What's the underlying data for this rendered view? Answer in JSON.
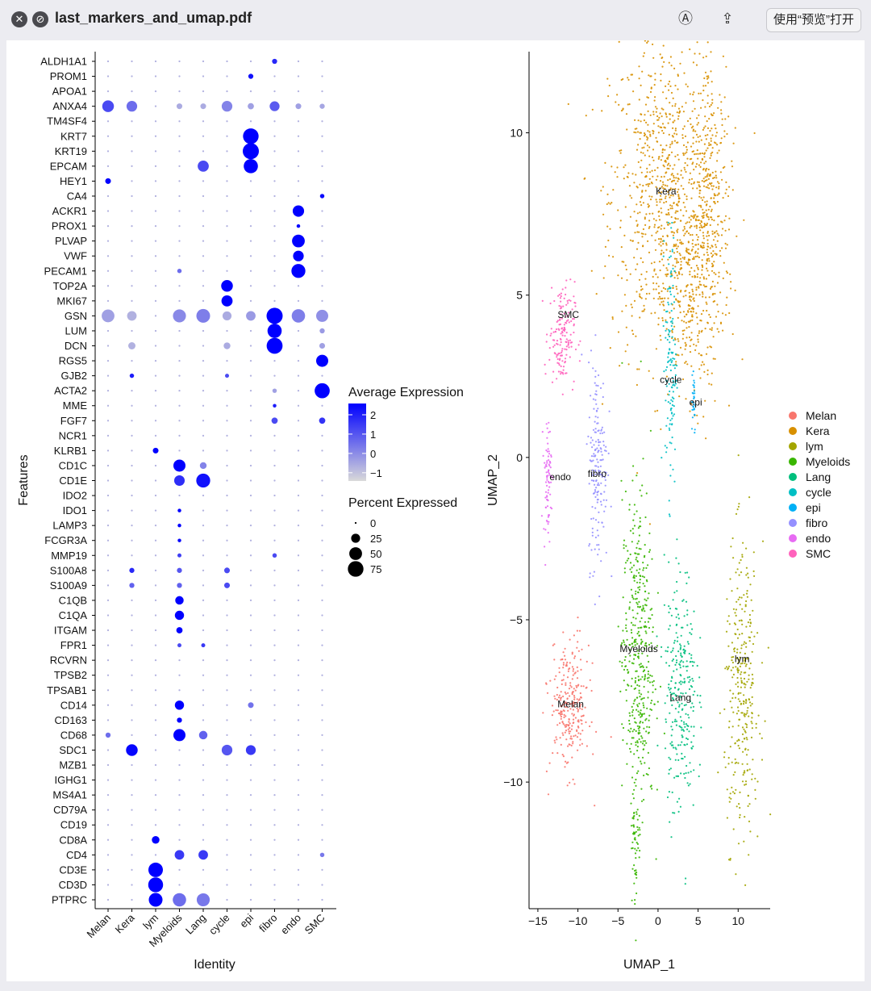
{
  "window": {
    "title": "last_markers_and_umap.pdf",
    "open_with_label": "使用“预览”打开",
    "icons": [
      "close-icon",
      "block-icon",
      "markup-icon",
      "share-icon"
    ]
  },
  "dotplot": {
    "features": [
      "ALDH1A1",
      "PROM1",
      "APOA1",
      "ANXA4",
      "TM4SF4",
      "KRT7",
      "KRT19",
      "EPCAM",
      "HEY1",
      "CA4",
      "ACKR1",
      "PROX1",
      "PLVAP",
      "VWF",
      "PECAM1",
      "TOP2A",
      "MKI67",
      "GSN",
      "LUM",
      "DCN",
      "RGS5",
      "GJB2",
      "ACTA2",
      "MME",
      "FGF7",
      "NCR1",
      "KLRB1",
      "CD1C",
      "CD1E",
      "IDO2",
      "IDO1",
      "LAMP3",
      "FCGR3A",
      "MMP19",
      "S100A8",
      "S100A9",
      "C1QB",
      "C1QA",
      "ITGAM",
      "FPR1",
      "RCVRN",
      "TPSB2",
      "TPSAB1",
      "CD14",
      "CD163",
      "CD68",
      "SDC1",
      "MZB1",
      "IGHG1",
      "MS4A1",
      "CD79A",
      "CD19",
      "CD8A",
      "CD4",
      "CD3E",
      "CD3D",
      "PTPRC"
    ],
    "identities": [
      "Melan",
      "Kera",
      "lym",
      "Myeloids",
      "Lang",
      "cycle",
      "epi",
      "fibro",
      "endo",
      "SMC"
    ],
    "xlabel": "Identity",
    "ylabel": "Features",
    "legend_expr_title": "Average Expression",
    "legend_expr_ticks": [
      "2",
      "1",
      "0",
      "−1"
    ],
    "legend_expr_values": [
      2,
      1,
      0,
      -1
    ],
    "legend_pct_title": "Percent Expressed",
    "legend_pct_labels": [
      "0",
      "25",
      "50",
      "75"
    ],
    "legend_pct_values": [
      0,
      25,
      50,
      75
    ],
    "color_low": "#d9d9d9",
    "color_high": "#0000ff",
    "highlights": [
      {
        "feature": "ALDH1A1",
        "identity": "fibro",
        "pct": 8,
        "expr": 1.8
      },
      {
        "feature": "PROM1",
        "identity": "epi",
        "pct": 8,
        "expr": 2.2
      },
      {
        "feature": "ANXA4",
        "identity": "Melan",
        "pct": 42,
        "expr": 1.2
      },
      {
        "feature": "ANXA4",
        "identity": "Kera",
        "pct": 35,
        "expr": 0.6
      },
      {
        "feature": "ANXA4",
        "identity": "cycle",
        "pct": 35,
        "expr": 0.2
      },
      {
        "feature": "ANXA4",
        "identity": "fibro",
        "pct": 30,
        "expr": 0.9
      },
      {
        "feature": "ANXA4",
        "identity": "Myeloids",
        "pct": 10,
        "expr": -0.5
      },
      {
        "feature": "ANXA4",
        "identity": "Lang",
        "pct": 10,
        "expr": -0.5
      },
      {
        "feature": "ANXA4",
        "identity": "epi",
        "pct": 12,
        "expr": -0.3
      },
      {
        "feature": "ANXA4",
        "identity": "endo",
        "pct": 10,
        "expr": -0.3
      },
      {
        "feature": "ANXA4",
        "identity": "SMC",
        "pct": 8,
        "expr": -0.4
      },
      {
        "feature": "KRT7",
        "identity": "epi",
        "pct": 75,
        "expr": 2.5
      },
      {
        "feature": "KRT19",
        "identity": "epi",
        "pct": 80,
        "expr": 2.5
      },
      {
        "feature": "EPCAM",
        "identity": "epi",
        "pct": 62,
        "expr": 2.5
      },
      {
        "feature": "EPCAM",
        "identity": "Lang",
        "pct": 38,
        "expr": 1.2
      },
      {
        "feature": "HEY1",
        "identity": "Melan",
        "pct": 10,
        "expr": 2.5
      },
      {
        "feature": "CA4",
        "identity": "SMC",
        "pct": 6,
        "expr": 2.3
      },
      {
        "feature": "ACKR1",
        "identity": "endo",
        "pct": 40,
        "expr": 2.5
      },
      {
        "feature": "PROX1",
        "identity": "endo",
        "pct": 4,
        "expr": 2.5
      },
      {
        "feature": "PLVAP",
        "identity": "endo",
        "pct": 50,
        "expr": 2.5
      },
      {
        "feature": "VWF",
        "identity": "endo",
        "pct": 35,
        "expr": 2.5
      },
      {
        "feature": "PECAM1",
        "identity": "endo",
        "pct": 60,
        "expr": 2.5
      },
      {
        "feature": "PECAM1",
        "identity": "Myeloids",
        "pct": 6,
        "expr": 0.6
      },
      {
        "feature": "TOP2A",
        "identity": "cycle",
        "pct": 42,
        "expr": 2.5
      },
      {
        "feature": "MKI67",
        "identity": "cycle",
        "pct": 38,
        "expr": 2.5
      },
      {
        "feature": "GSN",
        "identity": "Melan",
        "pct": 50,
        "expr": -0.3
      },
      {
        "feature": "GSN",
        "identity": "Kera",
        "pct": 28,
        "expr": -0.6
      },
      {
        "feature": "GSN",
        "identity": "Myeloids",
        "pct": 52,
        "expr": 0.1
      },
      {
        "feature": "GSN",
        "identity": "Lang",
        "pct": 58,
        "expr": 0.3
      },
      {
        "feature": "GSN",
        "identity": "cycle",
        "pct": 25,
        "expr": -0.5
      },
      {
        "feature": "GSN",
        "identity": "epi",
        "pct": 28,
        "expr": -0.2
      },
      {
        "feature": "GSN",
        "identity": "fibro",
        "pct": 80,
        "expr": 2.5
      },
      {
        "feature": "GSN",
        "identity": "endo",
        "pct": 55,
        "expr": 0.3
      },
      {
        "feature": "GSN",
        "identity": "SMC",
        "pct": 45,
        "expr": 0.0
      },
      {
        "feature": "LUM",
        "identity": "fibro",
        "pct": 62,
        "expr": 2.5
      },
      {
        "feature": "LUM",
        "identity": "SMC",
        "pct": 8,
        "expr": -0.2
      },
      {
        "feature": "DCN",
        "identity": "fibro",
        "pct": 78,
        "expr": 2.5
      },
      {
        "feature": "DCN",
        "identity": "Kera",
        "pct": 16,
        "expr": -0.6
      },
      {
        "feature": "DCN",
        "identity": "cycle",
        "pct": 14,
        "expr": -0.5
      },
      {
        "feature": "DCN",
        "identity": "SMC",
        "pct": 10,
        "expr": -0.3
      },
      {
        "feature": "RGS5",
        "identity": "SMC",
        "pct": 45,
        "expr": 2.5
      },
      {
        "feature": "GJB2",
        "identity": "Kera",
        "pct": 6,
        "expr": 2.0
      },
      {
        "feature": "GJB2",
        "identity": "cycle",
        "pct": 5,
        "expr": 1.2
      },
      {
        "feature": "ACTA2",
        "identity": "SMC",
        "pct": 70,
        "expr": 2.5
      },
      {
        "feature": "ACTA2",
        "identity": "fibro",
        "pct": 6,
        "expr": -0.3
      },
      {
        "feature": "MME",
        "identity": "fibro",
        "pct": 4,
        "expr": 2.0
      },
      {
        "feature": "FGF7",
        "identity": "fibro",
        "pct": 12,
        "expr": 1.2
      },
      {
        "feature": "FGF7",
        "identity": "SMC",
        "pct": 12,
        "expr": 1.6
      },
      {
        "feature": "KLRB1",
        "identity": "lym",
        "pct": 10,
        "expr": 2.5
      },
      {
        "feature": "CD1C",
        "identity": "Myeloids",
        "pct": 45,
        "expr": 2.5
      },
      {
        "feature": "CD1C",
        "identity": "Lang",
        "pct": 14,
        "expr": 0.2
      },
      {
        "feature": "CD1E",
        "identity": "Myeloids",
        "pct": 34,
        "expr": 1.7
      },
      {
        "feature": "CD1E",
        "identity": "Lang",
        "pct": 60,
        "expr": 2.2
      },
      {
        "feature": "IDO1",
        "identity": "Myeloids",
        "pct": 4,
        "expr": 2.5
      },
      {
        "feature": "LAMP3",
        "identity": "Myeloids",
        "pct": 4,
        "expr": 2.5
      },
      {
        "feature": "FCGR3A",
        "identity": "Myeloids",
        "pct": 4,
        "expr": 2.3
      },
      {
        "feature": "MMP19",
        "identity": "Myeloids",
        "pct": 5,
        "expr": 1.4
      },
      {
        "feature": "MMP19",
        "identity": "fibro",
        "pct": 6,
        "expr": 1.2
      },
      {
        "feature": "S100A8",
        "identity": "Kera",
        "pct": 8,
        "expr": 1.8
      },
      {
        "feature": "S100A8",
        "identity": "Myeloids",
        "pct": 8,
        "expr": 1.0
      },
      {
        "feature": "S100A8",
        "identity": "cycle",
        "pct": 10,
        "expr": 1.2
      },
      {
        "feature": "S100A9",
        "identity": "Kera",
        "pct": 8,
        "expr": 0.8
      },
      {
        "feature": "S100A9",
        "identity": "Myeloids",
        "pct": 8,
        "expr": 0.8
      },
      {
        "feature": "S100A9",
        "identity": "cycle",
        "pct": 10,
        "expr": 1.2
      },
      {
        "feature": "C1QB",
        "identity": "Myeloids",
        "pct": 22,
        "expr": 2.5
      },
      {
        "feature": "C1QA",
        "identity": "Myeloids",
        "pct": 26,
        "expr": 2.5
      },
      {
        "feature": "ITGAM",
        "identity": "Myeloids",
        "pct": 12,
        "expr": 2.5
      },
      {
        "feature": "FPR1",
        "identity": "Myeloids",
        "pct": 5,
        "expr": 1.2
      },
      {
        "feature": "FPR1",
        "identity": "Lang",
        "pct": 5,
        "expr": 1.5
      },
      {
        "feature": "CD14",
        "identity": "Myeloids",
        "pct": 26,
        "expr": 2.5
      },
      {
        "feature": "CD14",
        "identity": "epi",
        "pct": 10,
        "expr": 0.5
      },
      {
        "feature": "CD163",
        "identity": "Myeloids",
        "pct": 8,
        "expr": 2.5
      },
      {
        "feature": "CD68",
        "identity": "Myeloids",
        "pct": 45,
        "expr": 2.5
      },
      {
        "feature": "CD68",
        "identity": "Lang",
        "pct": 22,
        "expr": 0.8
      },
      {
        "feature": "CD68",
        "identity": "Melan",
        "pct": 8,
        "expr": 0.6
      },
      {
        "feature": "SDC1",
        "identity": "Kera",
        "pct": 42,
        "expr": 2.4
      },
      {
        "feature": "SDC1",
        "identity": "cycle",
        "pct": 35,
        "expr": 1.0
      },
      {
        "feature": "SDC1",
        "identity": "epi",
        "pct": 30,
        "expr": 1.5
      },
      {
        "feature": "CD8A",
        "identity": "lym",
        "pct": 18,
        "expr": 2.5
      },
      {
        "feature": "CD4",
        "identity": "Myeloids",
        "pct": 28,
        "expr": 1.5
      },
      {
        "feature": "CD4",
        "identity": "Lang",
        "pct": 28,
        "expr": 1.5
      },
      {
        "feature": "CD4",
        "identity": "SMC",
        "pct": 6,
        "expr": 0.4
      },
      {
        "feature": "CD3E",
        "identity": "lym",
        "pct": 65,
        "expr": 2.5
      },
      {
        "feature": "CD3D",
        "identity": "lym",
        "pct": 68,
        "expr": 2.5
      },
      {
        "feature": "PTPRC",
        "identity": "lym",
        "pct": 58,
        "expr": 2.5
      },
      {
        "feature": "PTPRC",
        "identity": "Myeloids",
        "pct": 55,
        "expr": 0.6
      },
      {
        "feature": "PTPRC",
        "identity": "Lang",
        "pct": 52,
        "expr": 0.4
      }
    ]
  },
  "umap": {
    "xlabel": "UMAP_1",
    "ylabel": "UMAP_2",
    "xticks": [
      -15,
      -10,
      -5,
      0,
      5,
      10
    ],
    "yticks": [
      10,
      5,
      0,
      -5,
      -10
    ],
    "xlim": [
      -16.2,
      14
    ],
    "ylim": [
      -13.9,
      12.5
    ],
    "legend": [
      {
        "name": "Melan",
        "color": "#F8766D"
      },
      {
        "name": "Kera",
        "color": "#D89000"
      },
      {
        "name": "lym",
        "color": "#A3A500"
      },
      {
        "name": "Myeloids",
        "color": "#39B600"
      },
      {
        "name": "Lang",
        "color": "#00BF7D"
      },
      {
        "name": "cycle",
        "color": "#00BFC4"
      },
      {
        "name": "epi",
        "color": "#00B0F6"
      },
      {
        "name": "fibro",
        "color": "#9590FF"
      },
      {
        "name": "endo",
        "color": "#E76BF3"
      },
      {
        "name": "SMC",
        "color": "#FF62BC"
      }
    ],
    "clusters": [
      {
        "name": "Kera",
        "label": "Kera",
        "cx": 1,
        "cy": 8,
        "sx": 3.5,
        "sy": 2.5,
        "n": 900,
        "lx": 1,
        "ly": 8.2
      },
      {
        "name": "Kera",
        "label": "",
        "cx": 6.5,
        "cy": 7.5,
        "sx": 1.2,
        "sy": 2.2,
        "n": 300,
        "lx": null,
        "ly": null
      },
      {
        "name": "Kera",
        "label": "",
        "cx": 4,
        "cy": 5,
        "sx": 1.5,
        "sy": 1.5,
        "n": 200,
        "lx": null,
        "ly": null
      },
      {
        "name": "SMC",
        "label": "SMC",
        "cx": -12,
        "cy": 3.8,
        "sx": 0.8,
        "sy": 0.8,
        "n": 160,
        "lx": -11.2,
        "ly": 4.4
      },
      {
        "name": "cycle",
        "label": "cycle",
        "cx": 1.6,
        "cy": 3.0,
        "sx": 0.35,
        "sy": 2.0,
        "n": 140,
        "lx": 1.6,
        "ly": 2.4
      },
      {
        "name": "epi",
        "label": "epi",
        "cx": 4.4,
        "cy": 1.9,
        "sx": 0.15,
        "sy": 0.6,
        "n": 30,
        "lx": 4.7,
        "ly": 1.7
      },
      {
        "name": "fibro",
        "label": "fibro",
        "cx": -7.5,
        "cy": -0.2,
        "sx": 0.6,
        "sy": 1.6,
        "n": 180,
        "lx": -7.6,
        "ly": -0.5
      },
      {
        "name": "endo",
        "label": "endo",
        "cx": -13.8,
        "cy": -0.6,
        "sx": 0.25,
        "sy": 0.9,
        "n": 80,
        "lx": -12.2,
        "ly": -0.6
      },
      {
        "name": "Myeloids",
        "label": "Myeloids",
        "cx": -2.5,
        "cy": -6.0,
        "sx": 1.0,
        "sy": 2.5,
        "n": 420,
        "lx": -2.4,
        "ly": -5.9
      },
      {
        "name": "Myeloids",
        "label": "",
        "cx": -2.8,
        "cy": -11.5,
        "sx": 0.3,
        "sy": 1.1,
        "n": 60,
        "lx": null,
        "ly": null
      },
      {
        "name": "Lang",
        "label": "Lang",
        "cx": 2.8,
        "cy": -7.2,
        "sx": 1.0,
        "sy": 1.9,
        "n": 280,
        "lx": 2.8,
        "ly": -7.4
      },
      {
        "name": "lym",
        "label": "lym",
        "cx": 10.5,
        "cy": -7.2,
        "sx": 1.1,
        "sy": 2.2,
        "n": 320,
        "lx": 10.5,
        "ly": -6.2
      },
      {
        "name": "Melan",
        "label": "Melan",
        "cx": -11,
        "cy": -7.7,
        "sx": 1.2,
        "sy": 1.0,
        "n": 260,
        "lx": -10.9,
        "ly": -7.6
      }
    ]
  }
}
